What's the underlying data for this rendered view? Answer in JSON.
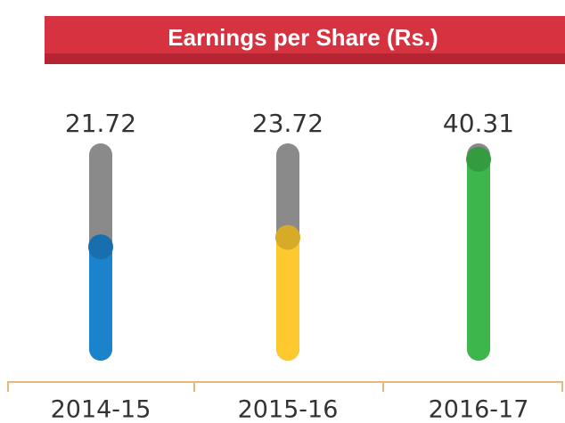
{
  "chart_data": {
    "type": "bar",
    "title": "Earnings per Share (Rs.)",
    "categories": [
      "2014-15",
      "2015-16",
      "2016-17"
    ],
    "values": [
      21.72,
      23.72,
      40.31
    ],
    "colors": [
      "#1b82cc",
      "#fdc92f",
      "#3db64b"
    ],
    "ylim": [
      0,
      42
    ]
  }
}
